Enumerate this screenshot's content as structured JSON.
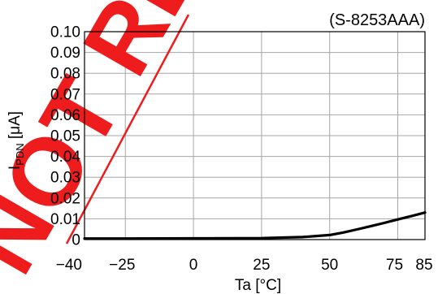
{
  "watermark": {
    "text": "NOT RECOMMENDED",
    "color": "#ee1c1c"
  },
  "chart_data": {
    "type": "line",
    "title": "(S-8253AAA)",
    "xlabel": "Ta [°C]",
    "ylabel_main": "I",
    "ylabel_sub": "PDN",
    "ylabel_unit": " [μA]",
    "xlim": [
      -40,
      85
    ],
    "ylim": [
      0,
      0.1
    ],
    "x_ticks": [
      -40,
      -25,
      0,
      25,
      50,
      75,
      85
    ],
    "x_tick_labels": [
      "−40",
      "−25",
      "0",
      "25",
      "50",
      "75",
      "85"
    ],
    "y_ticks": [
      0,
      0.01,
      0.02,
      0.03,
      0.04,
      0.05,
      0.06,
      0.07,
      0.08,
      0.09,
      0.1
    ],
    "y_tick_labels": [
      "0",
      "0.01",
      "0.02",
      "0.03",
      "0.04",
      "0.05",
      "0.06",
      "0.07",
      "0.08",
      "0.09",
      "0.10"
    ],
    "grid": true,
    "series": [
      {
        "x": [
          -40,
          -25,
          0,
          25,
          40,
          50,
          55,
          60,
          65,
          70,
          75,
          80,
          85
        ],
        "y": [
          0.0005,
          0.0005,
          0.0006,
          0.0007,
          0.0012,
          0.0022,
          0.0034,
          0.0049,
          0.0064,
          0.008,
          0.0097,
          0.0113,
          0.013
        ]
      }
    ]
  }
}
